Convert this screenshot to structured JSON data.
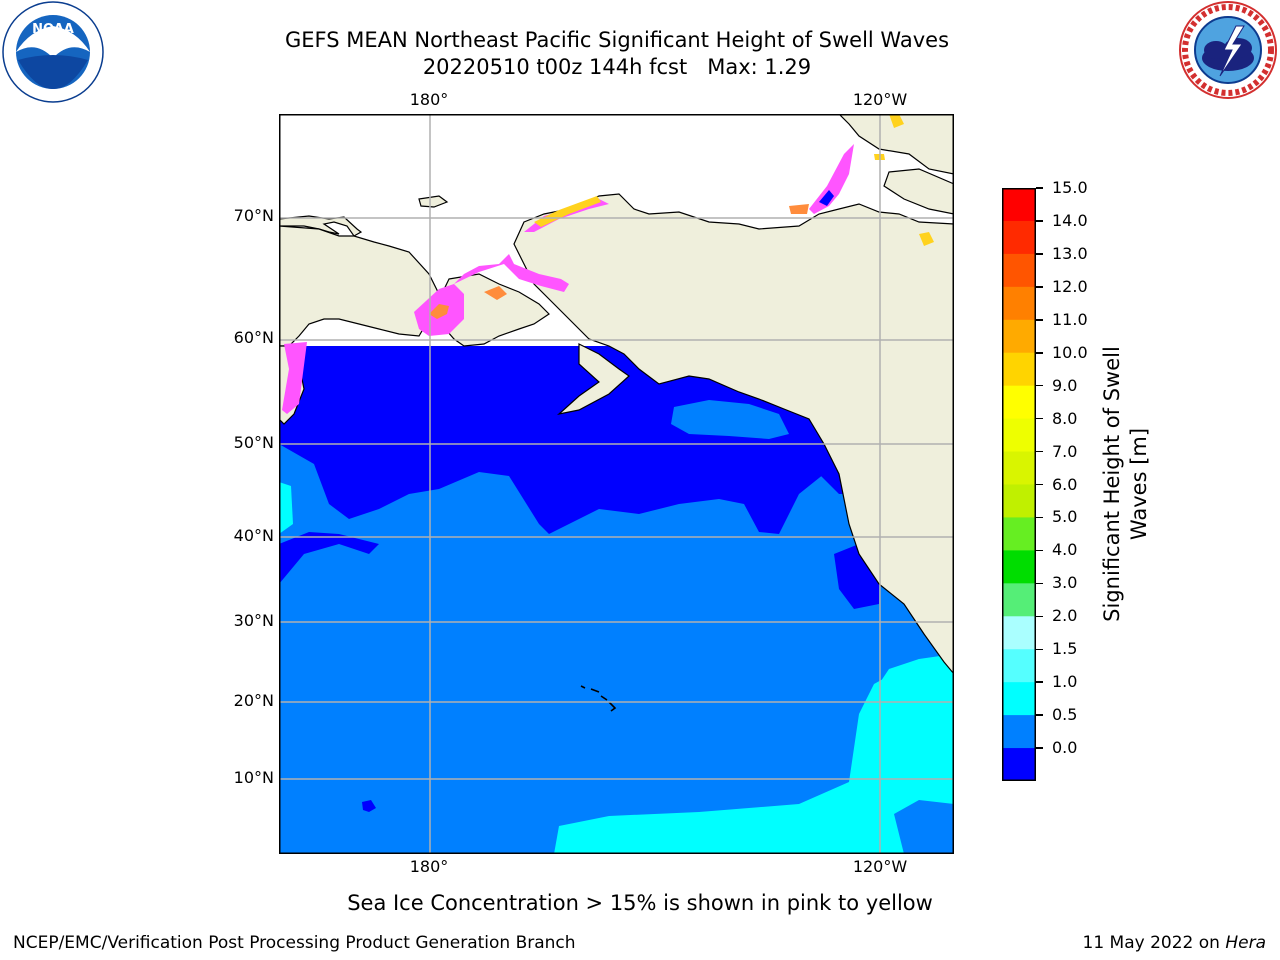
{
  "title": {
    "line1": "GEFS MEAN Northeast Pacific Significant Height of Swell Waves",
    "line2": "20220510 t00z 144h fcst   Max: 1.29"
  },
  "logos": {
    "left": {
      "name": "noaa-logo",
      "text": "NOAA",
      "ring_text": "NATIONAL OCEANIC AND ATMOSPHERIC ADMINISTRATION · U.S. DEPARTMENT OF COMMERCE"
    },
    "right": {
      "name": "nws-logo",
      "ring_text": "NATIONAL WEATHER SERVICE"
    }
  },
  "map": {
    "projection": "mercator",
    "lon_range": [
      160,
      247
    ],
    "lat_range": [
      2,
      78
    ],
    "lon_ticks": [
      "180°",
      "120°W"
    ],
    "lat_ticks": [
      "70°N",
      "60°N",
      "50°N",
      "40°N",
      "30°N",
      "20°N",
      "10°N"
    ],
    "grid": true,
    "colors": {
      "land": "#efefdc",
      "h_0_0_5": "#0000ff",
      "h_0_5_1_0": "#0080ff",
      "h_1_0_1_5": "#00ffff",
      "ice_pink": "#ff55ff",
      "ice_orange": "#ff8c3c",
      "ice_yellow": "#ffd21e",
      "grid": "#b0b0b0",
      "coast": "#000000"
    }
  },
  "colorbar": {
    "label": "Significant Height of Swell Waves [m]",
    "ticks": [
      "15.0",
      "14.0",
      "13.0",
      "12.0",
      "11.0",
      "10.0",
      "9.0",
      "8.0",
      "7.0",
      "6.0",
      "5.0",
      "4.0",
      "3.0",
      "2.0",
      "1.5",
      "1.0",
      "0.5",
      "0.0"
    ],
    "colors_top_to_bottom": [
      "#ff0000",
      "#ff2a00",
      "#ff5500",
      "#ff8000",
      "#ffaa00",
      "#ffd400",
      "#ffff00",
      "#eeff00",
      "#d9f500",
      "#c0f000",
      "#66ee22",
      "#00dd00",
      "#55ee77",
      "#aaffff",
      "#55ffff",
      "#00ffff",
      "#0080ff",
      "#0000ff"
    ]
  },
  "note": "Sea Ice Concentration > 15% is shown in pink to yellow",
  "footer": {
    "left": "NCEP/EMC/Verification Post Processing Product Generation Branch",
    "right_prefix": "11 May 2022 on ",
    "right_italic": "Hera"
  }
}
